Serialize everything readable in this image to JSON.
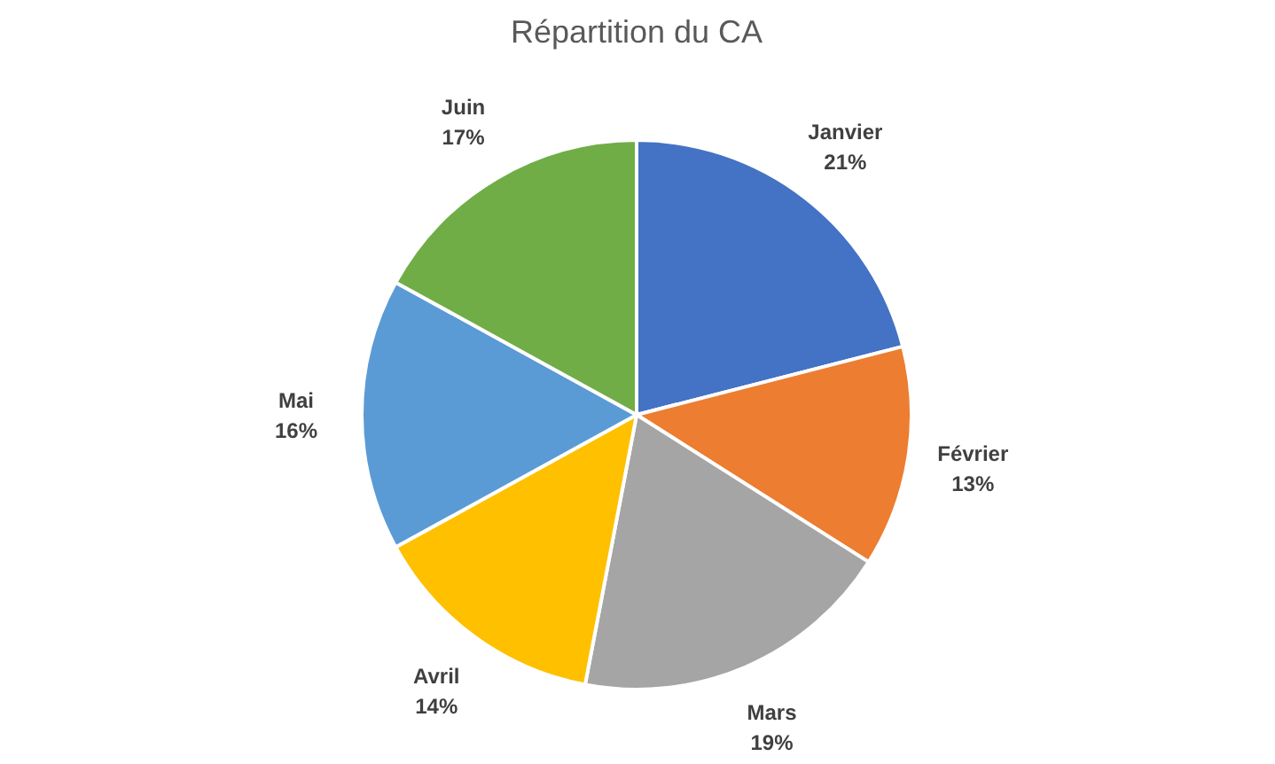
{
  "chart_data": {
    "type": "pie",
    "title": "Répartition du CA",
    "categories": [
      "Janvier",
      "Février",
      "Mars",
      "Avril",
      "Mai",
      "Juin"
    ],
    "values": [
      21,
      13,
      19,
      14,
      16,
      17
    ],
    "colors": [
      "#4472c4",
      "#ed7d31",
      "#a5a5a5",
      "#ffc000",
      "#5b9bd5",
      "#70ad47"
    ],
    "value_labels": [
      "21%",
      "13%",
      "19%",
      "14%",
      "16%",
      "17%"
    ]
  }
}
